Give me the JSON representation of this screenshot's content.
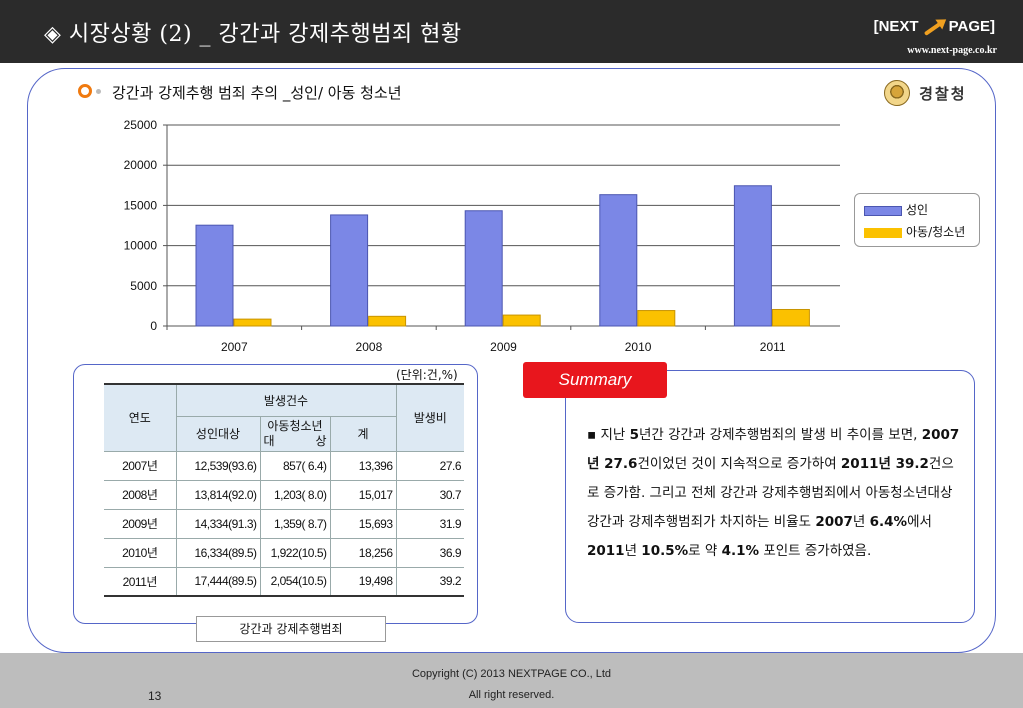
{
  "header": {
    "title": "◈ 시장상황 (2) _ 강간과 강제추행범죄 현황",
    "brand_left": "[NEXT",
    "brand_right": "PAGE]",
    "url": "www.next-page.co.kr"
  },
  "section": {
    "title": "강간과 강제추행 범죄 추의 _성인/ 아동 청소년",
    "org": "경찰청"
  },
  "chart_data": {
    "type": "bar",
    "categories": [
      "2007",
      "2008",
      "2009",
      "2010",
      "2011"
    ],
    "series": [
      {
        "name": "성인",
        "values": [
          12539,
          13814,
          14334,
          16334,
          17444
        ],
        "color": "#7b87e6"
      },
      {
        "name": "아동/청소년",
        "values": [
          857,
          1203,
          1359,
          1922,
          2054
        ],
        "color": "#fbc100"
      }
    ],
    "yticks": [
      "0",
      "5000",
      "10000",
      "15000",
      "20000",
      "25000"
    ],
    "ylim": [
      0,
      25000
    ],
    "grid": true,
    "legend_position": "right"
  },
  "table": {
    "unit": "(단위:건,%)",
    "headers": {
      "year": "연도",
      "occurrences": "발생건수",
      "adult": "성인대상",
      "youth_line1": "아동청소년",
      "youth_line2a": "대",
      "youth_line2b": "상",
      "total": "계",
      "ratio": "발생비"
    },
    "rows": [
      {
        "year": "2007년",
        "adult": "12,539(93.6)",
        "youth": "857(  6.4)",
        "total": "13,396",
        "ratio": "27.6"
      },
      {
        "year": "2008년",
        "adult": "13,814(92.0)",
        "youth": "1,203(  8.0)",
        "total": "15,017",
        "ratio": "30.7"
      },
      {
        "year": "2009년",
        "adult": "14,334(91.3)",
        "youth": "1,359(  8.7)",
        "total": "15,693",
        "ratio": "31.9"
      },
      {
        "year": "2010년",
        "adult": "16,334(89.5)",
        "youth": "1,922(10.5)",
        "total": "18,256",
        "ratio": "36.9"
      },
      {
        "year": "2011년",
        "adult": "17,444(89.5)",
        "youth": "2,054(10.5)",
        "total": "19,498",
        "ratio": "39.2"
      }
    ],
    "caption": "강간과 강제추행범죄"
  },
  "summary": {
    "tag": "Summary",
    "p1": "▪ 지난 ",
    "p2": "5",
    "p3": "년간 강간과 강제추행범죄의 발생 비 추이를 보면,  ",
    "p4": "2007",
    "p5": "년 ",
    "p6": "27.6",
    "p7": "건이었던 것이 지속적으로 증가하여 ",
    "p8": "2011",
    "p9": "년 ",
    "p10": "39.2",
    "p11": "건으로 증가함. 그리고 전체 강간과 강제추행범죄에서 아동청소년대상 강간과 강제추행범죄가 차지하는 비율도  ",
    "p12": "2007",
    "p13": "년 ",
    "p14": "6.4%",
    "p15": "에서 ",
    "p16": "2011",
    "p17": "년 ",
    "p18": "10.5%",
    "p19": "로 약 ",
    "p20": "4.1%",
    "p21": " 포인트 증가하였음."
  },
  "footer": {
    "copyright": "Copyright (C) 2013 NEXTPAGE CO., Ltd",
    "rights": "All right reserved.",
    "page_number": "13"
  }
}
